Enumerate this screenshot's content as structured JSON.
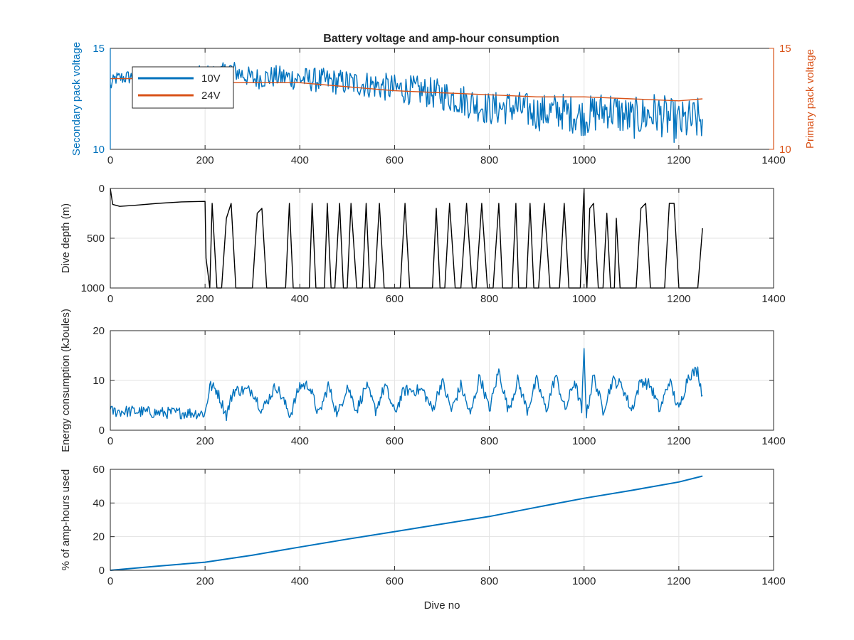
{
  "figure": {
    "title": "Battery voltage and amp-hour consumption"
  },
  "chart_data": [
    {
      "type": "line",
      "title": "Battery voltage and amp-hour consumption",
      "xlabel": "",
      "ylabel": "Secondary pack voltage",
      "ylabel_right": "Primary pack voltage",
      "xlim": [
        0,
        1400
      ],
      "ylim": [
        10,
        15
      ],
      "ylim_right": [
        10,
        15
      ],
      "xticks": [
        0,
        200,
        400,
        600,
        800,
        1000,
        1200,
        1400
      ],
      "yticks": [
        10,
        15
      ],
      "yticks_right": [
        10,
        15
      ],
      "grid": true,
      "legend": "top-left",
      "series": [
        {
          "name": "10V",
          "color": "#0072BD",
          "axis": "left",
          "noisy": true,
          "x": [
            0,
            10,
            50,
            100,
            150,
            200,
            240,
            250,
            300,
            350,
            400,
            450,
            500,
            550,
            600,
            650,
            700,
            750,
            800,
            850,
            900,
            950,
            1000,
            1050,
            1100,
            1150,
            1200,
            1250
          ],
          "y": [
            13.1,
            13.5,
            13.6,
            13.6,
            13.6,
            13.7,
            13.8,
            14.0,
            13.5,
            13.6,
            13.5,
            13.4,
            13.3,
            13.2,
            13.0,
            12.9,
            12.7,
            12.4,
            12.0,
            12.1,
            11.8,
            11.9,
            11.6,
            12.0,
            11.5,
            11.8,
            11.3,
            11.5
          ]
        },
        {
          "name": "24V",
          "color": "#D95319",
          "axis": "right",
          "noisy": false,
          "x": [
            0,
            100,
            200,
            250,
            300,
            400,
            500,
            600,
            700,
            800,
            900,
            1000,
            1100,
            1200,
            1250
          ],
          "y": [
            13.5,
            13.5,
            13.5,
            13.3,
            13.3,
            13.3,
            13.1,
            12.9,
            12.8,
            12.7,
            12.6,
            12.6,
            12.5,
            12.4,
            12.5
          ]
        }
      ]
    },
    {
      "type": "line",
      "xlabel": "",
      "ylabel": "Dive depth (m)",
      "xlim": [
        0,
        1400
      ],
      "ylim": [
        0,
        1000
      ],
      "y_reversed": true,
      "xticks": [
        0,
        200,
        400,
        600,
        800,
        1000,
        1200,
        1400
      ],
      "yticks": [
        0,
        500,
        1000
      ],
      "grid": true,
      "series": [
        {
          "color": "#000000",
          "noisy": false,
          "x": [
            0,
            5,
            20,
            50,
            100,
            150,
            200,
            202,
            210,
            215,
            225,
            235,
            245,
            255,
            265,
            300,
            310,
            320,
            330,
            340,
            370,
            378,
            386,
            394,
            420,
            426,
            434,
            444,
            452,
            458,
            466,
            474,
            484,
            492,
            500,
            508,
            520,
            532,
            540,
            548,
            558,
            568,
            578,
            612,
            622,
            632,
            642,
            680,
            688,
            696,
            706,
            716,
            728,
            740,
            752,
            764,
            772,
            784,
            796,
            808,
            820,
            828,
            838,
            848,
            856,
            862,
            870,
            878,
            886,
            894,
            904,
            916,
            928,
            938,
            948,
            958,
            968,
            980,
            992,
            998,
            1000,
            1002,
            1006,
            1012,
            1020,
            1030,
            1040,
            1048,
            1056,
            1064,
            1068,
            1076,
            1100,
            1110,
            1120,
            1130,
            1140,
            1170,
            1180,
            1190,
            1200,
            1210,
            1240,
            1245,
            1250
          ],
          "y": [
            0,
            160,
            180,
            170,
            150,
            135,
            130,
            700,
            1000,
            150,
            1000,
            1000,
            300,
            150,
            1000,
            1000,
            250,
            200,
            1000,
            1000,
            1000,
            150,
            1000,
            1000,
            1000,
            150,
            1000,
            1000,
            1000,
            150,
            1000,
            1000,
            150,
            1000,
            1000,
            150,
            1000,
            1000,
            150,
            1000,
            1000,
            150,
            1000,
            1000,
            150,
            1000,
            1000,
            1000,
            200,
            1000,
            1000,
            150,
            1000,
            1000,
            150,
            1000,
            1000,
            150,
            1000,
            1000,
            150,
            1000,
            1000,
            1000,
            150,
            1000,
            1000,
            1000,
            150,
            1000,
            1000,
            150,
            1000,
            1000,
            1000,
            150,
            1000,
            1000,
            1000,
            200,
            0,
            700,
            1000,
            200,
            150,
            1000,
            1000,
            250,
            1000,
            1000,
            300,
            1000,
            1000,
            1000,
            200,
            150,
            1000,
            1000,
            150,
            150,
            1000,
            1000,
            1000,
            700,
            400
          ]
        }
      ]
    },
    {
      "type": "line",
      "xlabel": "",
      "ylabel": "Energy consumption (kJoules)",
      "xlim": [
        0,
        1400
      ],
      "ylim": [
        0,
        20
      ],
      "xticks": [
        0,
        200,
        400,
        600,
        800,
        1000,
        1200,
        1400
      ],
      "yticks": [
        0,
        10,
        20
      ],
      "grid": true,
      "series": [
        {
          "color": "#0072BD",
          "noisy": true,
          "x": [
            0,
            50,
            100,
            150,
            200,
            205,
            210,
            225,
            245,
            260,
            280,
            300,
            320,
            350,
            380,
            400,
            420,
            440,
            460,
            480,
            500,
            520,
            540,
            560,
            580,
            600,
            620,
            640,
            660,
            680,
            700,
            720,
            740,
            760,
            780,
            800,
            820,
            840,
            860,
            880,
            900,
            920,
            940,
            960,
            980,
            995,
            1000,
            1005,
            1020,
            1040,
            1060,
            1080,
            1100,
            1120,
            1140,
            1160,
            1180,
            1200,
            1220,
            1240,
            1250
          ],
          "y": [
            3.8,
            3.8,
            3.5,
            3.5,
            3.4,
            6.0,
            9.0,
            8.0,
            3.0,
            8.0,
            8.0,
            8.0,
            4.0,
            9.0,
            3.0,
            9.0,
            9.0,
            3.0,
            9.0,
            3.0,
            9.0,
            4.0,
            9.0,
            4.0,
            9.0,
            3.5,
            8.0,
            8.0,
            8.0,
            4.0,
            10.0,
            4.0,
            9.0,
            3.0,
            11.0,
            4.0,
            12.0,
            4.0,
            10.0,
            4.0,
            10.0,
            4.0,
            11.0,
            4.0,
            10.0,
            4.0,
            16.0,
            3.0,
            11.0,
            4.0,
            10.0,
            9.0,
            4.0,
            10.0,
            9.0,
            4.0,
            10.0,
            4.0,
            11.0,
            12.0,
            7.0
          ]
        }
      ]
    },
    {
      "type": "line",
      "xlabel": "Dive no",
      "ylabel": "% of amp-hours used",
      "xlim": [
        0,
        1400
      ],
      "ylim": [
        0,
        60
      ],
      "xticks": [
        0,
        200,
        400,
        600,
        800,
        1000,
        1200,
        1400
      ],
      "yticks": [
        0,
        20,
        40,
        60
      ],
      "grid": true,
      "series": [
        {
          "color": "#0072BD",
          "noisy": false,
          "x": [
            0,
            100,
            200,
            300,
            400,
            500,
            600,
            700,
            800,
            900,
            1000,
            1100,
            1200,
            1250
          ],
          "y": [
            0,
            2.5,
            4.8,
            9.0,
            13.8,
            18.5,
            23.0,
            27.5,
            32.0,
            37.5,
            42.8,
            47.5,
            52.5,
            56.0
          ]
        }
      ]
    }
  ]
}
